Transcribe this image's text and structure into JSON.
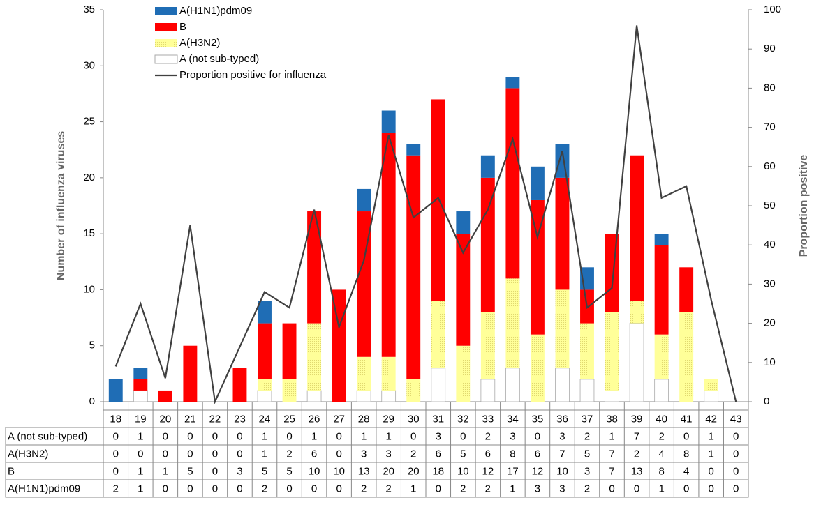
{
  "chart_data": {
    "type": "bar",
    "stacked": true,
    "y_label": "Number of influenza viruses",
    "y2_label": "Proportion positive",
    "categories": [
      "18",
      "19",
      "20",
      "21",
      "22",
      "23",
      "24",
      "25",
      "26",
      "27",
      "28",
      "29",
      "30",
      "31",
      "32",
      "33",
      "34",
      "35",
      "36",
      "37",
      "38",
      "39",
      "40",
      "41",
      "42",
      "43"
    ],
    "series": [
      {
        "name": "A (not sub-typed)",
        "color": "#ffffff",
        "values": [
          0,
          1,
          0,
          0,
          0,
          0,
          1,
          0,
          1,
          0,
          1,
          1,
          0,
          3,
          0,
          2,
          3,
          0,
          3,
          2,
          1,
          7,
          2,
          0,
          1,
          0
        ]
      },
      {
        "name": "A(H3N2)",
        "color": "#ffff99",
        "values": [
          0,
          0,
          0,
          0,
          0,
          0,
          1,
          2,
          6,
          0,
          3,
          3,
          2,
          6,
          5,
          6,
          8,
          6,
          7,
          5,
          7,
          2,
          4,
          8,
          1,
          0
        ]
      },
      {
        "name": "B",
        "color": "#ff0000",
        "values": [
          0,
          1,
          1,
          5,
          0,
          3,
          5,
          5,
          10,
          10,
          13,
          20,
          20,
          18,
          10,
          12,
          17,
          12,
          10,
          3,
          7,
          13,
          8,
          4,
          0,
          0
        ]
      },
      {
        "name": "A(H1N1)pdm09",
        "color": "#1f6db5",
        "values": [
          2,
          1,
          0,
          0,
          0,
          0,
          2,
          0,
          0,
          0,
          2,
          2,
          1,
          0,
          2,
          2,
          1,
          3,
          3,
          2,
          0,
          0,
          1,
          0,
          0,
          0
        ]
      },
      {
        "name": "Proportion positive for influenza",
        "type": "line",
        "axis": "y2",
        "color": "#404040",
        "values": [
          9,
          25,
          6,
          45,
          0,
          14,
          28,
          24,
          49,
          19,
          36,
          68,
          47,
          52,
          38,
          49,
          67,
          42,
          64,
          24,
          29,
          96,
          52,
          55,
          26,
          0
        ]
      }
    ],
    "ylim": [
      0,
      35
    ],
    "yticks": [
      0,
      5,
      10,
      15,
      20,
      25,
      30,
      35
    ],
    "y2lim": [
      0,
      100
    ],
    "y2ticks": [
      0,
      10,
      20,
      30,
      40,
      50,
      60,
      70,
      80,
      90,
      100
    ],
    "legend": "upper left"
  }
}
